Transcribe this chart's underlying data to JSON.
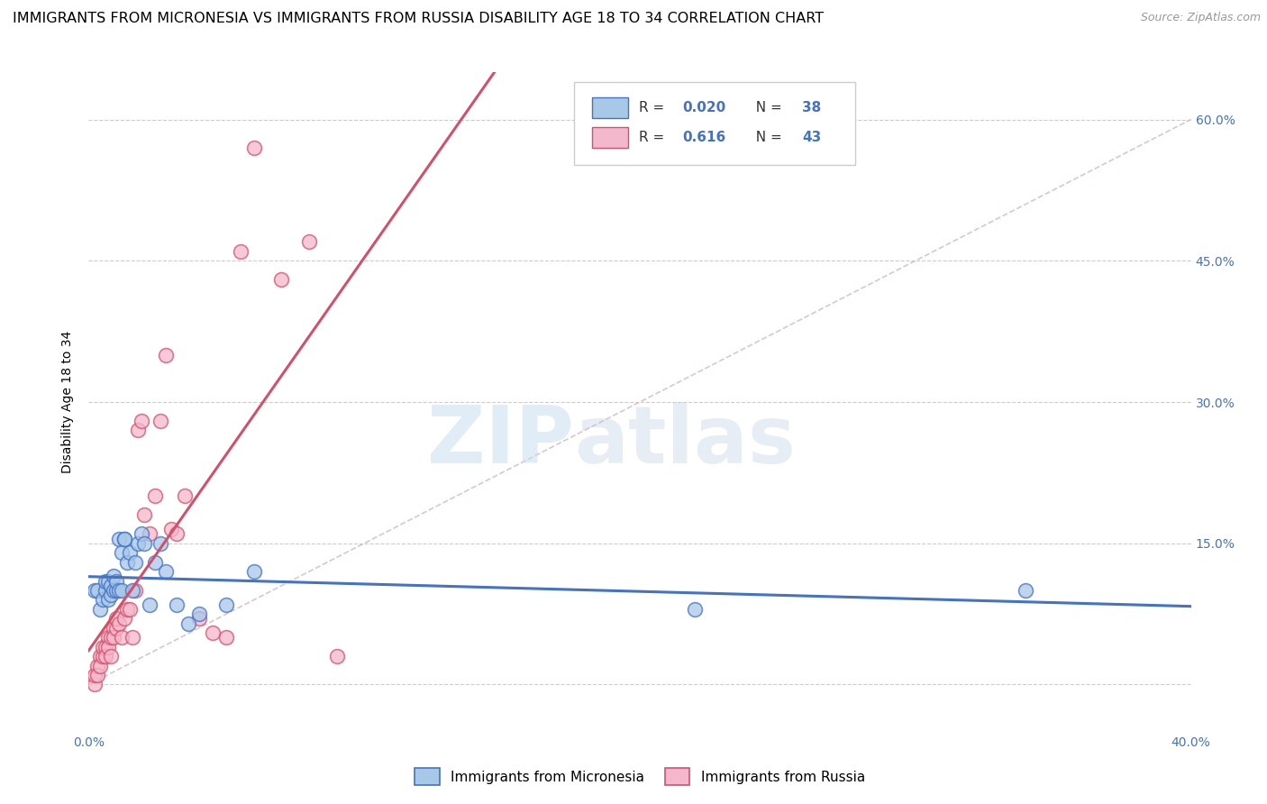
{
  "title": "IMMIGRANTS FROM MICRONESIA VS IMMIGRANTS FROM RUSSIA DISABILITY AGE 18 TO 34 CORRELATION CHART",
  "source": "Source: ZipAtlas.com",
  "ylabel": "Disability Age 18 to 34",
  "xlim": [
    0.0,
    0.4
  ],
  "ylim": [
    -0.05,
    0.65
  ],
  "xticks": [
    0.0,
    0.05,
    0.1,
    0.15,
    0.2,
    0.25,
    0.3,
    0.35,
    0.4
  ],
  "xticklabels": [
    "0.0%",
    "",
    "",
    "",
    "",
    "",
    "",
    "",
    "40.0%"
  ],
  "grid_yticks": [
    0.0,
    0.15,
    0.3,
    0.45,
    0.6
  ],
  "right_ytick_labels": [
    "15.0%",
    "30.0%",
    "45.0%",
    "60.0%"
  ],
  "series1_label": "Immigrants from Micronesia",
  "series2_label": "Immigrants from Russia",
  "color_micronesia": "#a8c8e8",
  "color_russia": "#f4b8cc",
  "trend_color_micronesia": "#4472c4",
  "trend_color_russia": "#d4506a",
  "diagonal_color": "#d8c0c8",
  "watermark_zip": "ZIP",
  "watermark_atlas": "atlas",
  "micronesia_x": [
    0.002,
    0.003,
    0.004,
    0.005,
    0.006,
    0.006,
    0.007,
    0.007,
    0.008,
    0.008,
    0.009,
    0.009,
    0.01,
    0.01,
    0.011,
    0.011,
    0.012,
    0.012,
    0.013,
    0.013,
    0.014,
    0.015,
    0.016,
    0.017,
    0.018,
    0.019,
    0.02,
    0.022,
    0.024,
    0.026,
    0.028,
    0.032,
    0.036,
    0.04,
    0.05,
    0.06,
    0.22,
    0.34
  ],
  "micronesia_y": [
    0.1,
    0.1,
    0.08,
    0.09,
    0.1,
    0.11,
    0.09,
    0.11,
    0.095,
    0.105,
    0.1,
    0.115,
    0.1,
    0.11,
    0.155,
    0.1,
    0.14,
    0.1,
    0.155,
    0.155,
    0.13,
    0.14,
    0.1,
    0.13,
    0.15,
    0.16,
    0.15,
    0.085,
    0.13,
    0.15,
    0.12,
    0.085,
    0.065,
    0.075,
    0.085,
    0.12,
    0.08,
    0.1
  ],
  "russia_x": [
    0.002,
    0.002,
    0.003,
    0.003,
    0.004,
    0.004,
    0.005,
    0.005,
    0.006,
    0.006,
    0.007,
    0.007,
    0.008,
    0.008,
    0.009,
    0.009,
    0.01,
    0.01,
    0.011,
    0.012,
    0.013,
    0.014,
    0.015,
    0.016,
    0.017,
    0.018,
    0.019,
    0.02,
    0.022,
    0.024,
    0.026,
    0.028,
    0.03,
    0.032,
    0.035,
    0.04,
    0.045,
    0.05,
    0.055,
    0.06,
    0.07,
    0.08,
    0.09
  ],
  "russia_y": [
    0.0,
    0.01,
    0.02,
    0.01,
    0.03,
    0.02,
    0.03,
    0.04,
    0.04,
    0.03,
    0.05,
    0.04,
    0.05,
    0.03,
    0.06,
    0.05,
    0.06,
    0.07,
    0.065,
    0.05,
    0.07,
    0.08,
    0.08,
    0.05,
    0.1,
    0.27,
    0.28,
    0.18,
    0.16,
    0.2,
    0.28,
    0.35,
    0.165,
    0.16,
    0.2,
    0.07,
    0.055,
    0.05,
    0.46,
    0.57,
    0.43,
    0.47,
    0.03
  ],
  "title_fontsize": 11.5,
  "axis_label_fontsize": 10,
  "tick_fontsize": 10
}
